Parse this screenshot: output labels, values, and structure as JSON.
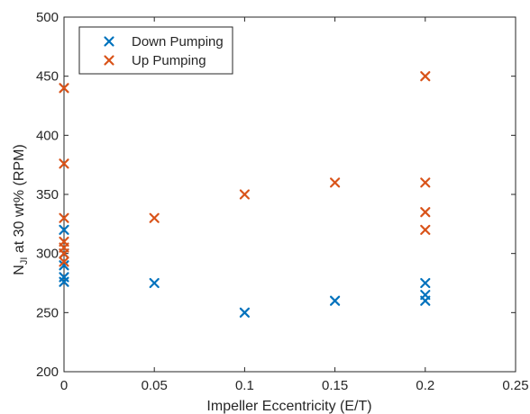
{
  "chart_data": {
    "type": "scatter",
    "title": "",
    "xlabel": "Impeller Eccentricity (E/T)",
    "ylabel_main": "N",
    "ylabel_sub": "JI",
    "ylabel_rest": " at 30 wt% (RPM)",
    "xlim": [
      0,
      0.25
    ],
    "ylim": [
      200,
      500
    ],
    "xticks": [
      0,
      0.05,
      0.1,
      0.15,
      0.2,
      0.25
    ],
    "xtick_labels": [
      "0",
      "0.05",
      "0.1",
      "0.15",
      "0.2",
      "0.25"
    ],
    "yticks": [
      200,
      250,
      300,
      350,
      400,
      450,
      500
    ],
    "ytick_labels": [
      "200",
      "250",
      "300",
      "350",
      "400",
      "450",
      "500"
    ],
    "grid": false,
    "legend_position": "top-left",
    "marker": "x",
    "series": [
      {
        "name": "Down Pumping",
        "color": "#0072BD",
        "points": [
          {
            "x": 0,
            "y": 320
          },
          {
            "x": 0,
            "y": 300
          },
          {
            "x": 0,
            "y": 290
          },
          {
            "x": 0,
            "y": 280
          },
          {
            "x": 0,
            "y": 276
          },
          {
            "x": 0.05,
            "y": 275
          },
          {
            "x": 0.1,
            "y": 250
          },
          {
            "x": 0.15,
            "y": 260
          },
          {
            "x": 0.2,
            "y": 275
          },
          {
            "x": 0.2,
            "y": 265
          },
          {
            "x": 0.2,
            "y": 260
          }
        ]
      },
      {
        "name": "Up Pumping",
        "color": "#D95319",
        "points": [
          {
            "x": 0,
            "y": 440
          },
          {
            "x": 0,
            "y": 376
          },
          {
            "x": 0,
            "y": 330
          },
          {
            "x": 0,
            "y": 310
          },
          {
            "x": 0,
            "y": 305
          },
          {
            "x": 0,
            "y": 300
          },
          {
            "x": 0,
            "y": 293
          },
          {
            "x": 0.05,
            "y": 330
          },
          {
            "x": 0.1,
            "y": 350
          },
          {
            "x": 0.15,
            "y": 360
          },
          {
            "x": 0.2,
            "y": 450
          },
          {
            "x": 0.2,
            "y": 360
          },
          {
            "x": 0.2,
            "y": 335
          },
          {
            "x": 0.2,
            "y": 320
          }
        ]
      }
    ]
  }
}
